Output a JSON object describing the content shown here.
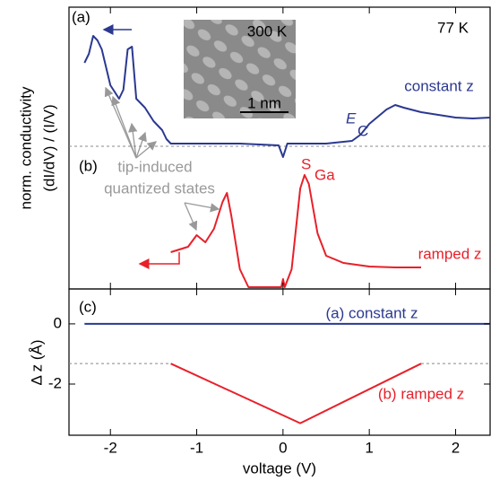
{
  "chart_data": [
    {
      "type": "line",
      "panel_labels": [
        "(a)",
        "(b)"
      ],
      "temperature": "77 K",
      "inset": {
        "label": "300 K",
        "scale": "1 nm"
      },
      "ylabel": [
        "norm. conductivity",
        "(dI/dV) / (I/V)"
      ],
      "xlim": [
        -2.48,
        2.4
      ],
      "ylim": [
        -15.9,
        15.5
      ],
      "baseline": 0,
      "series": [
        {
          "name": "constant z",
          "color": "#2b3990",
          "x": [
            -2.3,
            -2.25,
            -2.2,
            -2.15,
            -2.1,
            -2.05,
            -2.0,
            -1.9,
            -1.85,
            -1.8,
            -1.75,
            -1.7,
            -1.6,
            -1.5,
            -1.4,
            -1.35,
            -1.3,
            -1.0,
            -0.5,
            -0.05,
            0,
            0.05,
            0.5,
            0.8,
            0.9,
            1.0,
            1.1,
            1.2,
            1.3,
            1.4,
            1.6,
            1.8,
            2.0,
            2.2,
            2.4
          ],
          "values": [
            9.3,
            10.3,
            12.3,
            11.8,
            10.8,
            8.8,
            6.8,
            5.3,
            6.3,
            10.8,
            11.1,
            5.3,
            4.3,
            2.8,
            1.8,
            0.8,
            0.3,
            0.3,
            0.3,
            0.1,
            -1.2,
            0.3,
            0.3,
            0.6,
            1.3,
            2.5,
            3.3,
            4.1,
            4.6,
            4.3,
            3.8,
            3.5,
            3.2,
            3.1,
            3.2
          ]
        },
        {
          "name": "ramped z",
          "color": "#e8202a",
          "x": [
            -1.3,
            -1.1,
            -1.0,
            -0.9,
            -0.8,
            -0.7,
            -0.65,
            -0.6,
            -0.5,
            -0.4,
            -0.2,
            -0.02,
            0,
            0.02,
            0.1,
            0.2,
            0.25,
            0.3,
            0.4,
            0.5,
            0.7,
            1.0,
            1.3,
            1.6
          ],
          "values": [
            -11.8,
            -11.2,
            -9.9,
            -10.7,
            -9.2,
            -6.2,
            -5.2,
            -7.7,
            -13.7,
            -15.7,
            -15.7,
            -15.7,
            -14.8,
            -15.7,
            -13.7,
            -4.7,
            -3.2,
            -4.2,
            -9.7,
            -12.2,
            -13.0,
            -13.4,
            -13.5,
            -13.5
          ]
        }
      ],
      "annotations": {
        "ec": [
          "E",
          "C"
        ],
        "sga": [
          "S",
          "Ga"
        ],
        "states": [
          "tip-induced",
          "quantized states"
        ]
      }
    },
    {
      "type": "line",
      "panel_label": "(c)",
      "xlabel": "voltage (V)",
      "ylabel": "Δ z (Å)",
      "xlim": [
        -2.48,
        2.4
      ],
      "ylim": [
        -3.7,
        1.16
      ],
      "xticks": [
        -2,
        -1,
        0,
        1,
        2
      ],
      "yticks": [
        -2,
        0
      ],
      "ref_line": -1.32,
      "series": [
        {
          "name": "(a) constant z",
          "color": "#2b3990",
          "x": [
            -2.3,
            2.4
          ],
          "values": [
            0,
            0
          ]
        },
        {
          "name": "(b) ramped z",
          "color": "#e8202a",
          "x": [
            -1.3,
            0.2,
            1.6
          ],
          "values": [
            -1.32,
            -3.3,
            -1.32
          ]
        }
      ]
    }
  ]
}
